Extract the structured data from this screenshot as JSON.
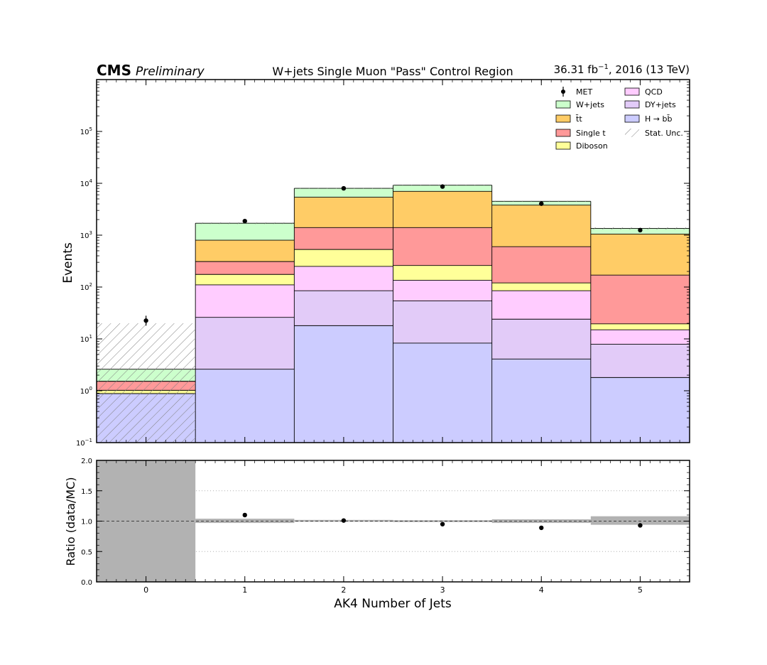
{
  "header": {
    "cms_label": "CMS",
    "preliminary_label": "Preliminary",
    "title": "W+jets Single Muon \"Pass\" Control Region",
    "lumi_value": "36.31 fb",
    "lumi_exponent": "−1",
    "lumi_suffix": ", 2016 (13 TeV)"
  },
  "chart_data": {
    "type": "bar",
    "stacked": true,
    "yscale": "log",
    "ylim": [
      0.1,
      1000000
    ],
    "xlim": [
      -0.5,
      5.5
    ],
    "categories": [
      "0",
      "1",
      "2",
      "3",
      "4",
      "5"
    ],
    "x": [
      0,
      1,
      2,
      3,
      4,
      5
    ],
    "xlabel": "AK4 Number of Jets",
    "ylabel": "Events",
    "y_tick_labels": [
      {
        "value": 0.1,
        "base": "10",
        "exp": "−1"
      },
      {
        "value": 1,
        "base": "10",
        "exp": "0"
      },
      {
        "value": 10,
        "base": "10",
        "exp": "1"
      },
      {
        "value": 100,
        "base": "10",
        "exp": "2"
      },
      {
        "value": 1000,
        "base": "10",
        "exp": "3"
      },
      {
        "value": 10000,
        "base": "10",
        "exp": "4"
      },
      {
        "value": 100000,
        "base": "10",
        "exp": "5"
      }
    ],
    "cumulative_stack_top": [
      {
        "name": "H → bb̄",
        "color": "#ccccff",
        "values": [
          0.88,
          2.6,
          18,
          8.3,
          4.1,
          1.8
        ]
      },
      {
        "name": "DY+jets",
        "color": "#e2cbf8",
        "values": [
          0.88,
          26,
          85,
          54,
          24,
          7.9
        ]
      },
      {
        "name": "QCD",
        "color": "#ffccff",
        "values": [
          0.88,
          110,
          250,
          135,
          85,
          15
        ]
      },
      {
        "name": "Diboson",
        "color": "#ffff99",
        "values": [
          1.02,
          175,
          530,
          260,
          120,
          19.5
        ]
      },
      {
        "name": "Single t",
        "color": "#ff9999",
        "values": [
          1.52,
          310,
          1400,
          1400,
          600,
          170
        ]
      },
      {
        "name": "t̄t",
        "color": "#ffcc66",
        "values": [
          1.52,
          800,
          5400,
          7000,
          3800,
          1050
        ]
      },
      {
        "name": "W+jets",
        "color": "#ccffcc",
        "values": [
          2.6,
          1700,
          8000,
          9200,
          4500,
          1350
        ]
      }
    ],
    "stat_unc": {
      "name": "Stat. Unc.",
      "lower": [
        0.1,
        1640,
        7880,
        9050,
        4400,
        1280
      ],
      "upper": [
        20,
        1760,
        8120,
        9350,
        4600,
        1420
      ]
    },
    "data": {
      "name": "MET",
      "values": [
        22.5,
        1870,
        8000,
        8650,
        4050,
        1250
      ],
      "err_low": [
        4.5,
        43,
        89,
        93,
        64,
        35
      ],
      "err_high": [
        5.5,
        43,
        89,
        93,
        64,
        35
      ]
    },
    "legend": {
      "placement": "top-right",
      "left_column": [
        {
          "label": "MET",
          "kind": "data"
        },
        {
          "label": "W+jets",
          "kind": "fill",
          "color": "#ccffcc"
        },
        {
          "label": "t̄t",
          "kind": "fill",
          "color": "#ffcc66"
        },
        {
          "label": "Single t",
          "kind": "fill",
          "color": "#ff9999"
        },
        {
          "label": "Diboson",
          "kind": "fill",
          "color": "#ffff99"
        }
      ],
      "right_column": [
        {
          "label": "QCD",
          "kind": "fill",
          "color": "#ffccff"
        },
        {
          "label": "DY+jets",
          "kind": "fill",
          "color": "#e2cbf8"
        },
        {
          "label": "H → bb̄",
          "kind": "fill",
          "color": "#ccccff"
        },
        {
          "label": "Stat. Unc.",
          "kind": "hatch"
        }
      ]
    },
    "ratio": {
      "ylabel": "Ratio (data/MC)",
      "ylim": [
        0.0,
        2.0
      ],
      "y_tick_labels": [
        "0.0",
        "0.5",
        "1.0",
        "1.5",
        "2.0"
      ],
      "y_tick_values": [
        0.0,
        0.5,
        1.0,
        1.5,
        2.0
      ],
      "values": [
        null,
        1.1,
        1.01,
        0.95,
        0.89,
        0.93
      ],
      "band_low": [
        0.0,
        0.97,
        0.99,
        0.985,
        0.97,
        0.94
      ],
      "band_high": [
        2.0,
        1.04,
        1.02,
        1.015,
        1.03,
        1.08
      ],
      "reference_line": 1.0
    }
  }
}
